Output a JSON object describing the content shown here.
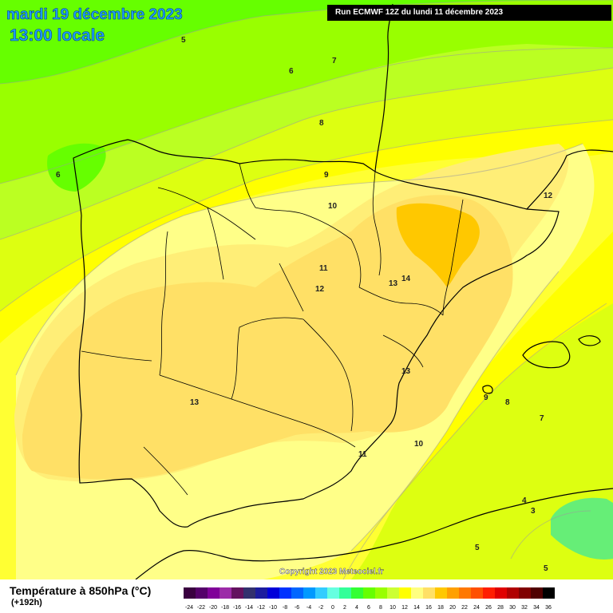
{
  "header": {
    "date": "mardi 19 décembre 2023",
    "time": "13:00 locale",
    "run": "Run ECMWF 12Z du lundi 11 décembre 2023"
  },
  "footer": {
    "variable": "Température à 850hPa (°C)",
    "lead": "(+192h)",
    "copyright": "Copyright 2023 Meteociel.fr"
  },
  "map": {
    "region": "Iberian Peninsula",
    "contour_labels": [
      {
        "text": "5",
        "lon": -5.8,
        "lat": 45.6
      },
      {
        "text": "6",
        "lon": -3.3,
        "lat": 45.0
      },
      {
        "text": "7",
        "lon": -2.3,
        "lat": 45.2
      },
      {
        "text": "8",
        "lon": -2.6,
        "lat": 44.0
      },
      {
        "text": "6",
        "lon": -8.7,
        "lat": 43.0
      },
      {
        "text": "9",
        "lon": -2.5,
        "lat": 43.0
      },
      {
        "text": "10",
        "lon": -2.4,
        "lat": 42.4
      },
      {
        "text": "11",
        "lon": -2.6,
        "lat": 41.2
      },
      {
        "text": "12",
        "lon": -2.7,
        "lat": 40.8
      },
      {
        "text": "14",
        "lon": -0.7,
        "lat": 41.0
      },
      {
        "text": "13",
        "lon": -1.0,
        "lat": 40.9
      },
      {
        "text": "12",
        "lon": 2.6,
        "lat": 42.6
      },
      {
        "text": "13",
        "lon": -0.7,
        "lat": 39.2
      },
      {
        "text": "13",
        "lon": -5.6,
        "lat": 38.6
      },
      {
        "text": "9",
        "lon": 1.2,
        "lat": 38.7
      },
      {
        "text": "8",
        "lon": 1.7,
        "lat": 38.6
      },
      {
        "text": "7",
        "lon": 2.5,
        "lat": 38.3
      },
      {
        "text": "10",
        "lon": -0.4,
        "lat": 37.8
      },
      {
        "text": "11",
        "lon": -1.7,
        "lat": 37.6
      },
      {
        "text": "4",
        "lon": 2.1,
        "lat": 36.7
      },
      {
        "text": "3",
        "lon": 2.3,
        "lat": 36.5
      },
      {
        "text": "5",
        "lon": 1.0,
        "lat": 35.8
      },
      {
        "text": "5",
        "lon": 2.6,
        "lat": 35.4
      }
    ]
  },
  "legend": {
    "values": [
      "-24",
      "-22",
      "-20",
      "-18",
      "-16",
      "-14",
      "-12",
      "-10",
      "-8",
      "-6",
      "-4",
      "-2",
      "0",
      "2",
      "4",
      "6",
      "8",
      "10",
      "12",
      "14",
      "16",
      "18",
      "20",
      "22",
      "24",
      "26",
      "28",
      "30",
      "32",
      "34",
      "36"
    ],
    "colors": [
      "#3a0040",
      "#55006a",
      "#800099",
      "#9c2ba8",
      "#63125f",
      "#32306e",
      "#1c1c9e",
      "#0000d9",
      "#0033ff",
      "#0066ff",
      "#0099ff",
      "#33ccff",
      "#66ffe0",
      "#33ff99",
      "#33ff33",
      "#66ff00",
      "#99ff00",
      "#ccff33",
      "#ffff00",
      "#ffff80",
      "#ffe066",
      "#ffc800",
      "#ffa000",
      "#ff7800",
      "#ff5000",
      "#ff1e00",
      "#e00000",
      "#b00000",
      "#800000",
      "#500000",
      "#000000"
    ]
  },
  "colors": {
    "t4": "#66ee77",
    "t5": "#66ff00",
    "t6": "#99ff00",
    "t7": "#bbff22",
    "t8": "#ddff11",
    "t9": "#ffff00",
    "t10": "#ffff33",
    "t11": "#ffff88",
    "t12": "#ffee77",
    "t13": "#ffe066",
    "t14": "#ffc800"
  }
}
